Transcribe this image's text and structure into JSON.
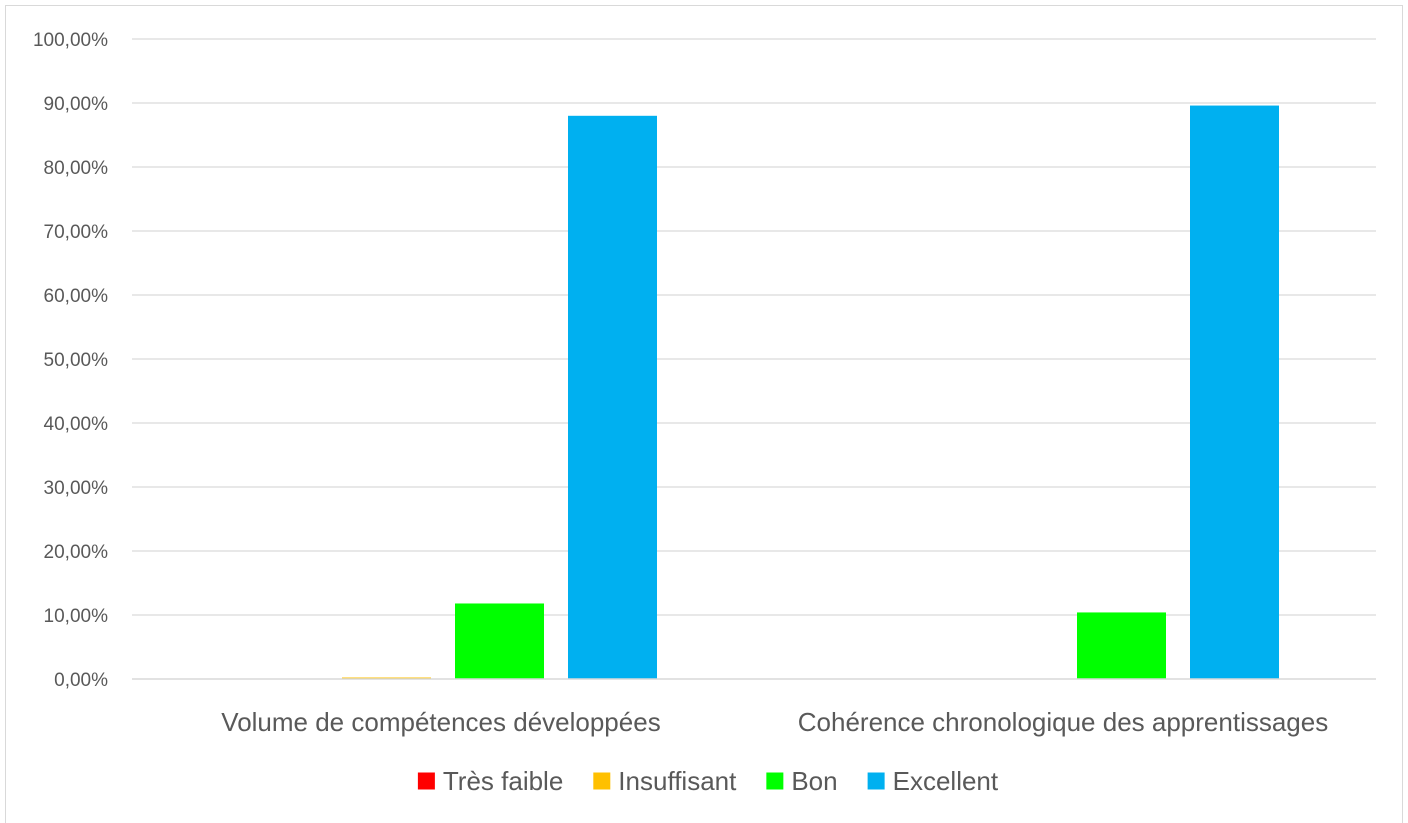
{
  "chart_data": {
    "type": "bar",
    "categories": [
      "Volume de compétences développées",
      "Cohérence chronologique des apprentissages"
    ],
    "series": [
      {
        "name": "Très faible",
        "values": [
          0,
          0
        ],
        "color": "#ff0000"
      },
      {
        "name": "Insuffisant",
        "values": [
          0.2,
          0
        ],
        "color": "#ffc000"
      },
      {
        "name": "Bon",
        "values": [
          11.8,
          10.4
        ],
        "color": "#00ff00"
      },
      {
        "name": "Excellent",
        "values": [
          88.0,
          89.6
        ],
        "color": "#00b0f0"
      }
    ],
    "y_ticks": [
      "0,00%",
      "10,00%",
      "20,00%",
      "30,00%",
      "40,00%",
      "50,00%",
      "60,00%",
      "70,00%",
      "80,00%",
      "90,00%",
      "100,00%"
    ],
    "ylim": [
      0,
      100
    ],
    "grid": true,
    "legend_position": "bottom"
  }
}
